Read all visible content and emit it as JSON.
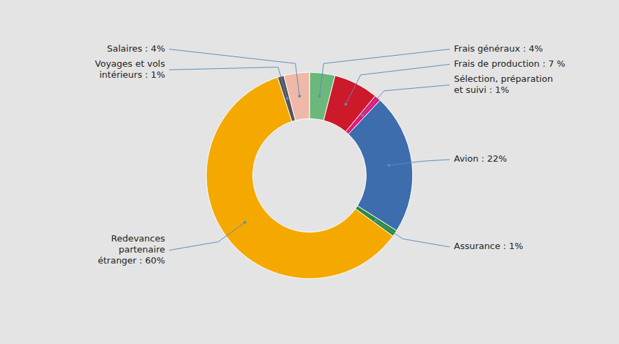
{
  "chart_data": {
    "type": "pie",
    "categories": [
      "Frais généraux : 4%",
      "Frais de production : 7 %",
      "Sélection, préparation\net suivi : 1%",
      "Avion : 22%",
      "Assurance : 1%",
      "Redevances\npartenaire\nétranger : 60%",
      "Voyages et vols\nintérieurs : 1%",
      "Salaires : 4%"
    ],
    "values": [
      4,
      7,
      1,
      22,
      1,
      60,
      1,
      4
    ],
    "colors": [
      "#6BB87A",
      "#CC1A2A",
      "#E0187A",
      "#3D6DAD",
      "#2E8B3A",
      "#F5A800",
      "#555555",
      "#F0B8A8"
    ]
  }
}
